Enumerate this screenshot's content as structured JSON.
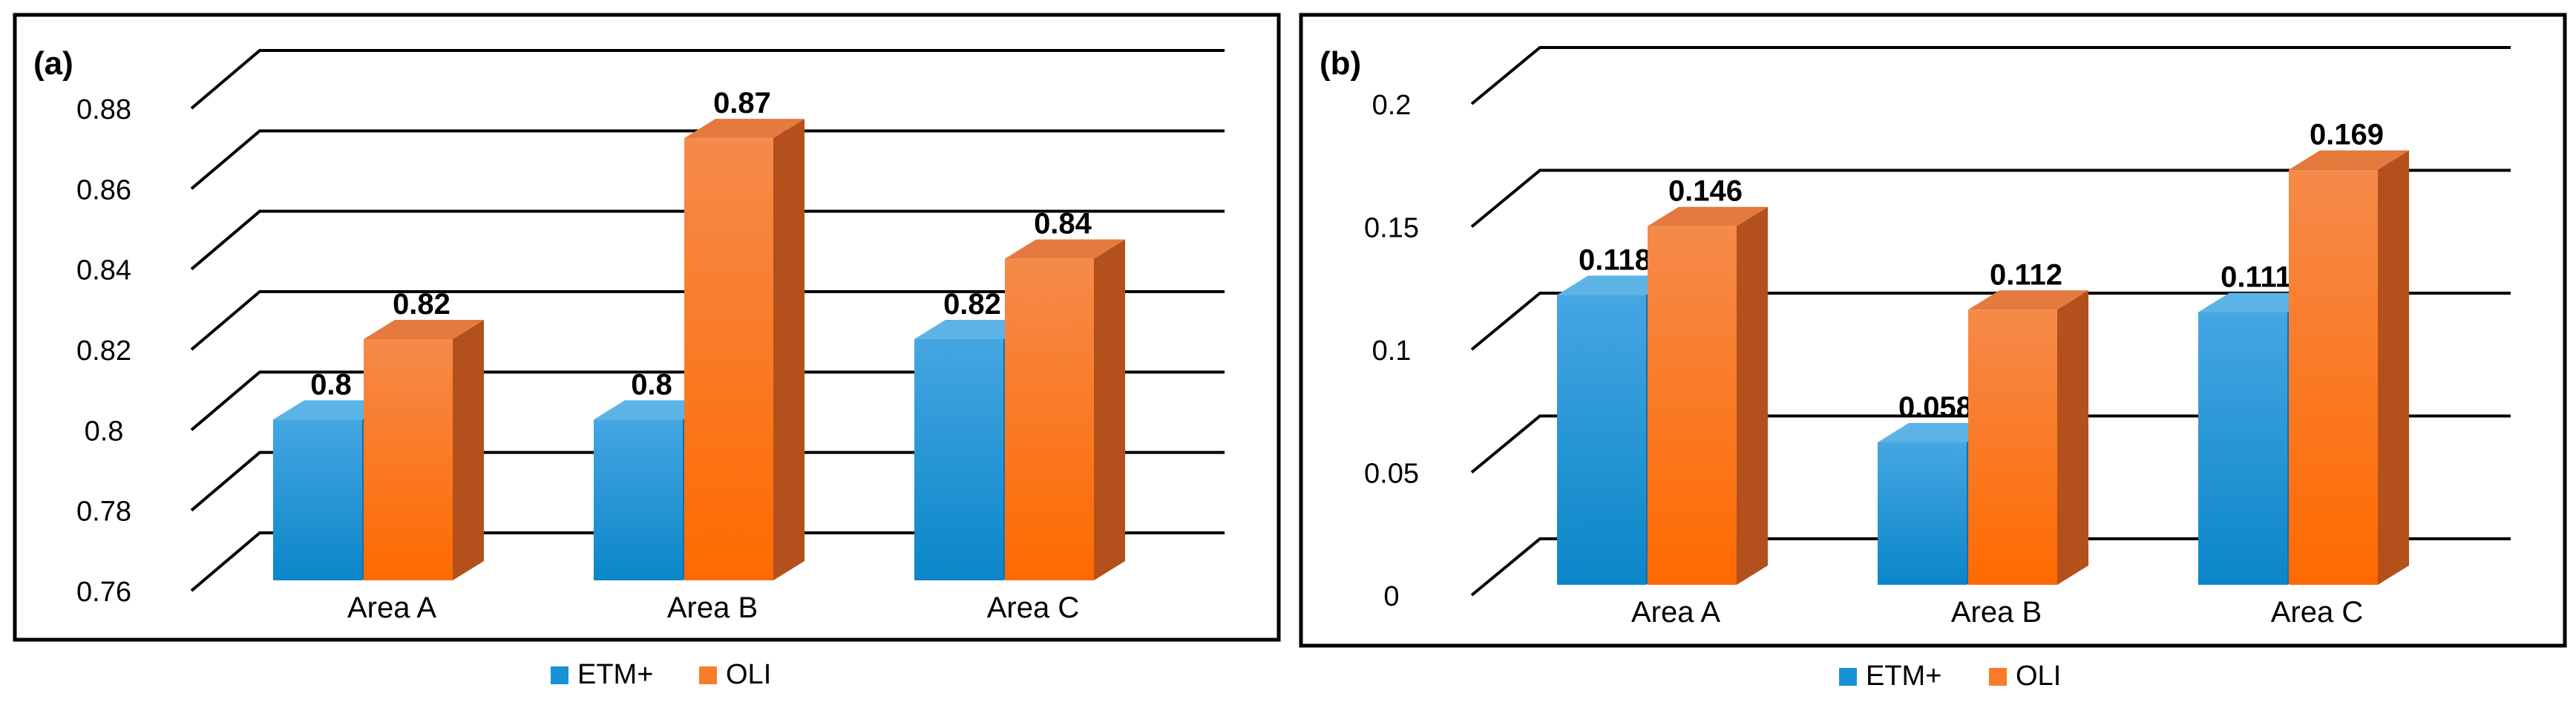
{
  "colors": {
    "etm_front_top": "#45a6e2",
    "etm_front_bottom": "#0a86c8",
    "etm_side": "#1a6ea3",
    "etm_top": "#5cb3e6",
    "oli_front_top": "#f58a4a",
    "oli_front_bottom": "#ff6a00",
    "oli_side": "#b3501c",
    "oli_top": "#e47a3e",
    "grid": "#000000"
  },
  "chart_data": [
    {
      "type": "bar",
      "panel_label": "(a)",
      "categories": [
        "Area A",
        "Area B",
        "Area C"
      ],
      "series": [
        {
          "name": "ETM+",
          "values": [
            0.8,
            0.8,
            0.82
          ],
          "labels": [
            "0.8",
            "0.8",
            "0.82"
          ]
        },
        {
          "name": "OLI",
          "values": [
            0.82,
            0.87,
            0.84
          ],
          "labels": [
            "0.82",
            "0.87",
            "0.84"
          ]
        }
      ],
      "ylim": [
        0.76,
        0.88
      ],
      "yticks": [
        "0.76",
        "0.78",
        "0.8",
        "0.82",
        "0.84",
        "0.86",
        "0.88"
      ],
      "ytick_values": [
        0.76,
        0.78,
        0.8,
        0.82,
        0.84,
        0.86,
        0.88
      ],
      "grid": true,
      "legend": "bottom-center"
    },
    {
      "type": "bar",
      "panel_label": "(b)",
      "categories": [
        "Area A",
        "Area B",
        "Area C"
      ],
      "series": [
        {
          "name": "ETM+",
          "values": [
            0.118,
            0.058,
            0.111
          ],
          "labels": [
            "0.118",
            "0.058",
            "0.111"
          ]
        },
        {
          "name": "OLI",
          "values": [
            0.146,
            0.112,
            0.169
          ],
          "labels": [
            "0.146",
            "0.112",
            "0.169"
          ]
        }
      ],
      "ylim": [
        0,
        0.2
      ],
      "yticks": [
        "0",
        "0.05",
        "0.1",
        "0.15",
        "0.2"
      ],
      "ytick_values": [
        0,
        0.05,
        0.1,
        0.15,
        0.2
      ],
      "grid": true,
      "legend": "bottom-center"
    }
  ]
}
